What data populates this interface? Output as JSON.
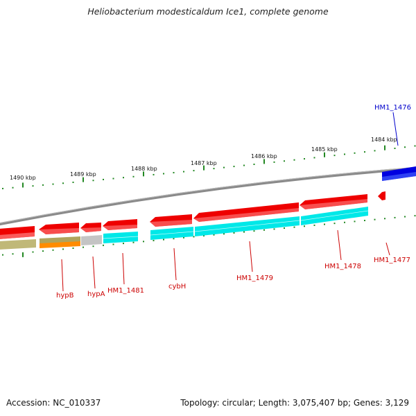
{
  "title": "Heliobacterium modesticaldum Ice1, complete genome",
  "footer": {
    "accession": "Accession: NC_010337",
    "summary": "Topology: circular; Length: 3,075,407 bp; Genes: 3,129"
  },
  "scale_labels": [
    "1490 kbp",
    "1489 kbp",
    "1488 kbp",
    "1487 kbp",
    "1486 kbp",
    "1485 kbp",
    "1484 kbp"
  ],
  "gene_labels": [
    {
      "text": "HM1_1476",
      "strand": "upper"
    },
    {
      "text": "HM1_1477",
      "strand": "lower"
    },
    {
      "text": "HM1_1478",
      "strand": "lower"
    },
    {
      "text": "HM1_1479",
      "strand": "lower"
    },
    {
      "text": "cybH",
      "strand": "lower"
    },
    {
      "text": "HM1_1481",
      "strand": "lower"
    },
    {
      "text": "hypA",
      "strand": "lower"
    },
    {
      "text": "hypB",
      "strand": "lower"
    }
  ],
  "colors": {
    "forward_cds": "#0000dd",
    "reverse_cds": "#ee0000",
    "cyan_track": "#00eeee",
    "olive_track": "#b8b070",
    "gray_track": "#c0c0c0",
    "orange_track": "#ff8800",
    "backbone": "#888888",
    "tick": "#228822",
    "label_blue": "#0000cc",
    "label_red": "#cc0000"
  }
}
